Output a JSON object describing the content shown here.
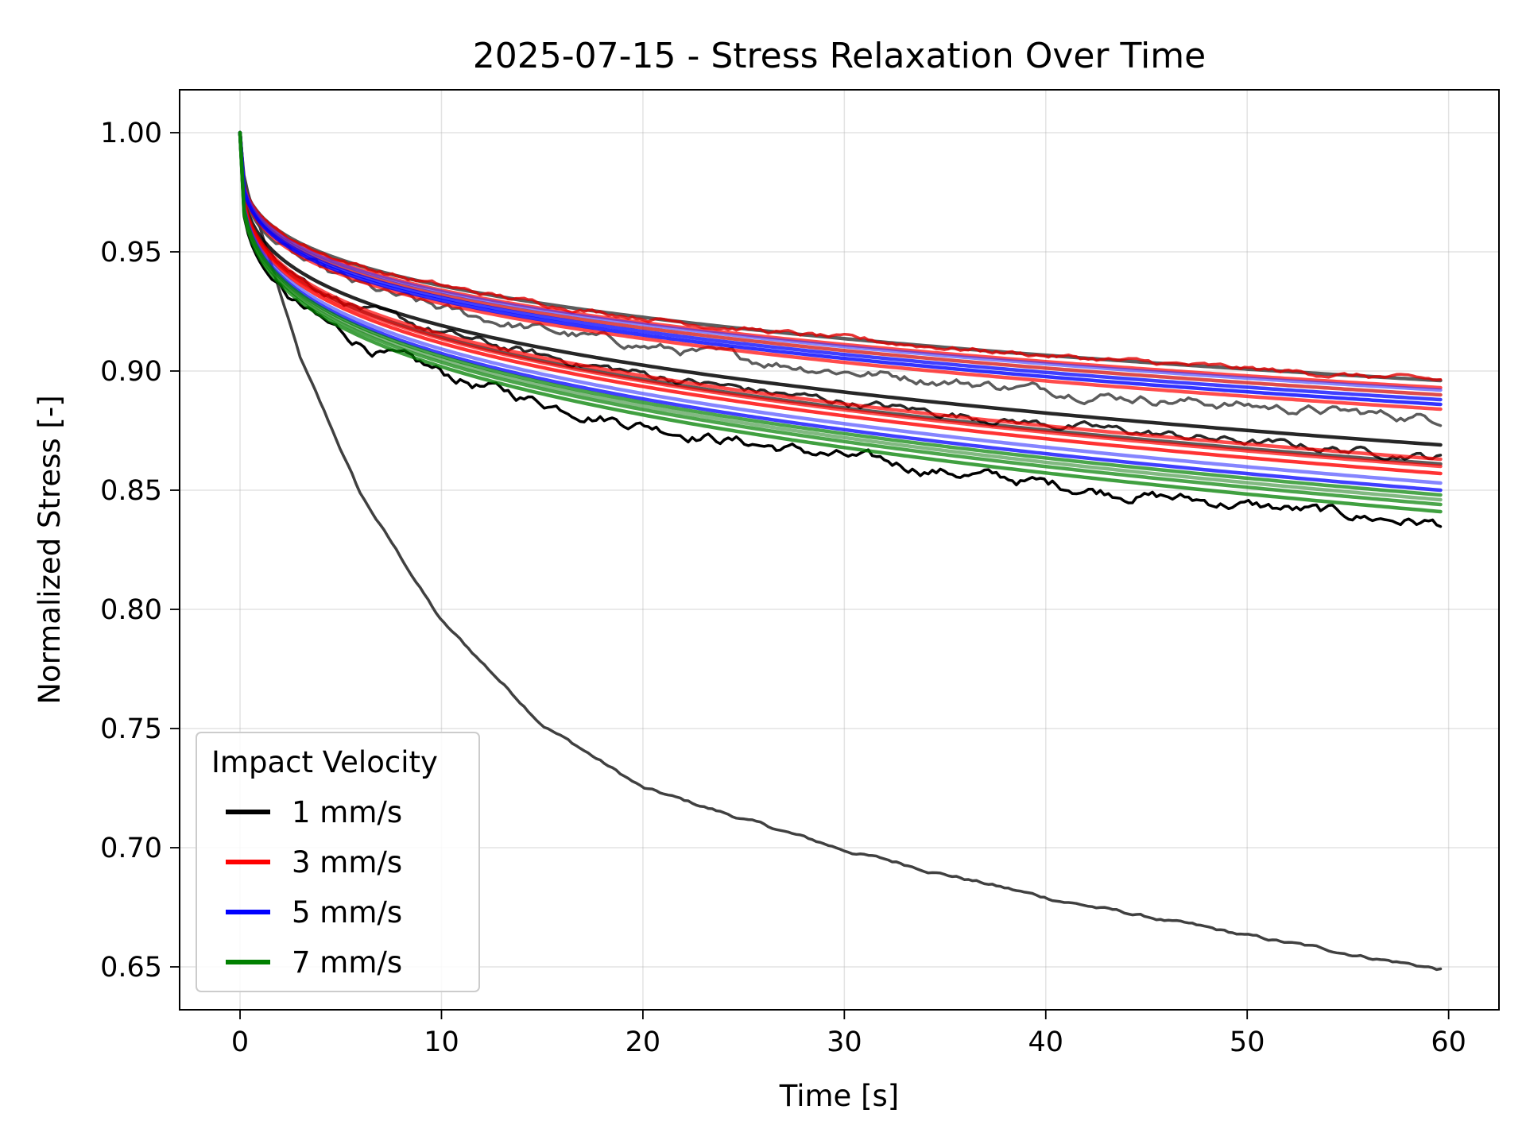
{
  "chart_data": {
    "type": "line",
    "title": "2025-07-15 - Stress Relaxation Over Time",
    "xlabel": "Time [s]",
    "ylabel": "Normalized Stress [-]",
    "xlim": [
      -3,
      62.5
    ],
    "ylim": [
      0.632,
      1.018
    ],
    "xticks": [
      0,
      10,
      20,
      30,
      40,
      50,
      60
    ],
    "yticks": [
      0.65,
      0.7,
      0.75,
      0.8,
      0.85,
      0.9,
      0.95,
      1.0
    ],
    "ytick_labels": [
      "0.65",
      "0.70",
      "0.75",
      "0.80",
      "0.85",
      "0.90",
      "0.95",
      "1.00"
    ],
    "grid": true,
    "legend": {
      "title": "Impact Velocity",
      "placement": "lower-left",
      "entries": [
        {
          "label": "1 mm/s",
          "color": "#000000"
        },
        {
          "label": "3 mm/s",
          "color": "#ff0000"
        },
        {
          "label": "5 mm/s",
          "color": "#0000ff"
        },
        {
          "label": "7 mm/s",
          "color": "#008000"
        }
      ]
    },
    "curve_shape": "power-law decay from 1.00 at t=0",
    "series": [
      {
        "group": "1 mm/s",
        "color": "#404040",
        "opacity": 1.0,
        "noise": 0.001,
        "x": [
          0,
          1,
          3,
          6,
          10,
          15,
          20,
          30,
          40,
          50,
          59.6
        ],
        "values": [
          1.0,
          0.96,
          0.905,
          0.848,
          0.795,
          0.752,
          0.725,
          0.699,
          0.679,
          0.663,
          0.649
        ]
      },
      {
        "group": "1 mm/s",
        "color": "#000000",
        "opacity": 1.0,
        "noise": 0.0035,
        "x": [
          0,
          59.6
        ],
        "values": [
          1.0,
          0.836
        ]
      },
      {
        "group": "1 mm/s",
        "color": "#000000",
        "opacity": 0.85,
        "noise": 0.0,
        "x": [
          0,
          59.6
        ],
        "values": [
          1.0,
          0.869
        ]
      },
      {
        "group": "1 mm/s",
        "color": "#404040",
        "opacity": 0.85,
        "noise": 0.0,
        "x": [
          0,
          59.6
        ],
        "values": [
          1.0,
          0.861
        ]
      },
      {
        "group": "1 mm/s",
        "color": "#404040",
        "opacity": 0.85,
        "noise": 0.003,
        "x": [
          0,
          59.6
        ],
        "values": [
          1.0,
          0.88
        ]
      },
      {
        "group": "1 mm/s",
        "color": "#000000",
        "opacity": 0.85,
        "noise": 0.0025,
        "x": [
          0,
          59.6
        ],
        "values": [
          1.0,
          0.864
        ]
      },
      {
        "group": "1 mm/s",
        "color": "#404040",
        "opacity": 0.85,
        "noise": 0.0,
        "x": [
          0,
          59.6
        ],
        "values": [
          1.0,
          0.896
        ]
      },
      {
        "group": "3 mm/s",
        "color": "#ff0000",
        "opacity": 0.8,
        "noise": 0.0,
        "x": [
          0,
          59.6
        ],
        "values": [
          1.0,
          0.857
        ]
      },
      {
        "group": "3 mm/s",
        "color": "#ff0000",
        "opacity": 0.7,
        "noise": 0.0,
        "x": [
          0,
          59.6
        ],
        "values": [
          1.0,
          0.86
        ]
      },
      {
        "group": "3 mm/s",
        "color": "#ff0000",
        "opacity": 0.7,
        "noise": 0.0,
        "x": [
          0,
          59.6
        ],
        "values": [
          1.0,
          0.863
        ]
      },
      {
        "group": "3 mm/s",
        "color": "#e00000",
        "opacity": 0.8,
        "noise": 0.0015,
        "x": [
          0,
          59.6
        ],
        "values": [
          1.0,
          0.896
        ]
      },
      {
        "group": "3 mm/s",
        "color": "#ff0000",
        "opacity": 0.7,
        "noise": 0.0,
        "x": [
          0,
          59.6
        ],
        "values": [
          1.0,
          0.893
        ]
      },
      {
        "group": "3 mm/s",
        "color": "#d00000",
        "opacity": 0.7,
        "noise": 0.0,
        "x": [
          0,
          59.6
        ],
        "values": [
          1.0,
          0.89
        ]
      },
      {
        "group": "3 mm/s",
        "color": "#ff0000",
        "opacity": 0.7,
        "noise": 0.0,
        "x": [
          0,
          59.6
        ],
        "values": [
          1.0,
          0.884
        ]
      },
      {
        "group": "5 mm/s",
        "color": "#0000ff",
        "opacity": 0.75,
        "noise": 0.0,
        "x": [
          0,
          59.6
        ],
        "values": [
          1.0,
          0.85
        ]
      },
      {
        "group": "5 mm/s",
        "color": "#3333ff",
        "opacity": 0.6,
        "noise": 0.0,
        "x": [
          0,
          59.6
        ],
        "values": [
          1.0,
          0.853
        ]
      },
      {
        "group": "5 mm/s",
        "color": "#0000ff",
        "opacity": 0.75,
        "noise": 0.0,
        "x": [
          0,
          59.6
        ],
        "values": [
          1.0,
          0.888
        ]
      },
      {
        "group": "5 mm/s",
        "color": "#3333ff",
        "opacity": 0.6,
        "noise": 0.0,
        "x": [
          0,
          59.6
        ],
        "values": [
          1.0,
          0.892
        ]
      },
      {
        "group": "5 mm/s",
        "color": "#0000ff",
        "opacity": 0.8,
        "noise": 0.0,
        "x": [
          0,
          59.6
        ],
        "values": [
          1.0,
          0.886
        ]
      },
      {
        "group": "7 mm/s",
        "color": "#008000",
        "opacity": 0.75,
        "noise": 0.0,
        "x": [
          0,
          59.6
        ],
        "values": [
          1.0,
          0.841
        ]
      },
      {
        "group": "7 mm/s",
        "color": "#008000",
        "opacity": 0.7,
        "noise": 0.0,
        "x": [
          0,
          59.6
        ],
        "values": [
          1.0,
          0.844
        ]
      },
      {
        "group": "7 mm/s",
        "color": "#2e8b2e",
        "opacity": 0.6,
        "noise": 0.0,
        "x": [
          0,
          59.6
        ],
        "values": [
          1.0,
          0.846
        ]
      },
      {
        "group": "7 mm/s",
        "color": "#008000",
        "opacity": 0.7,
        "noise": 0.0,
        "x": [
          0,
          59.6
        ],
        "values": [
          1.0,
          0.848
        ]
      }
    ]
  }
}
